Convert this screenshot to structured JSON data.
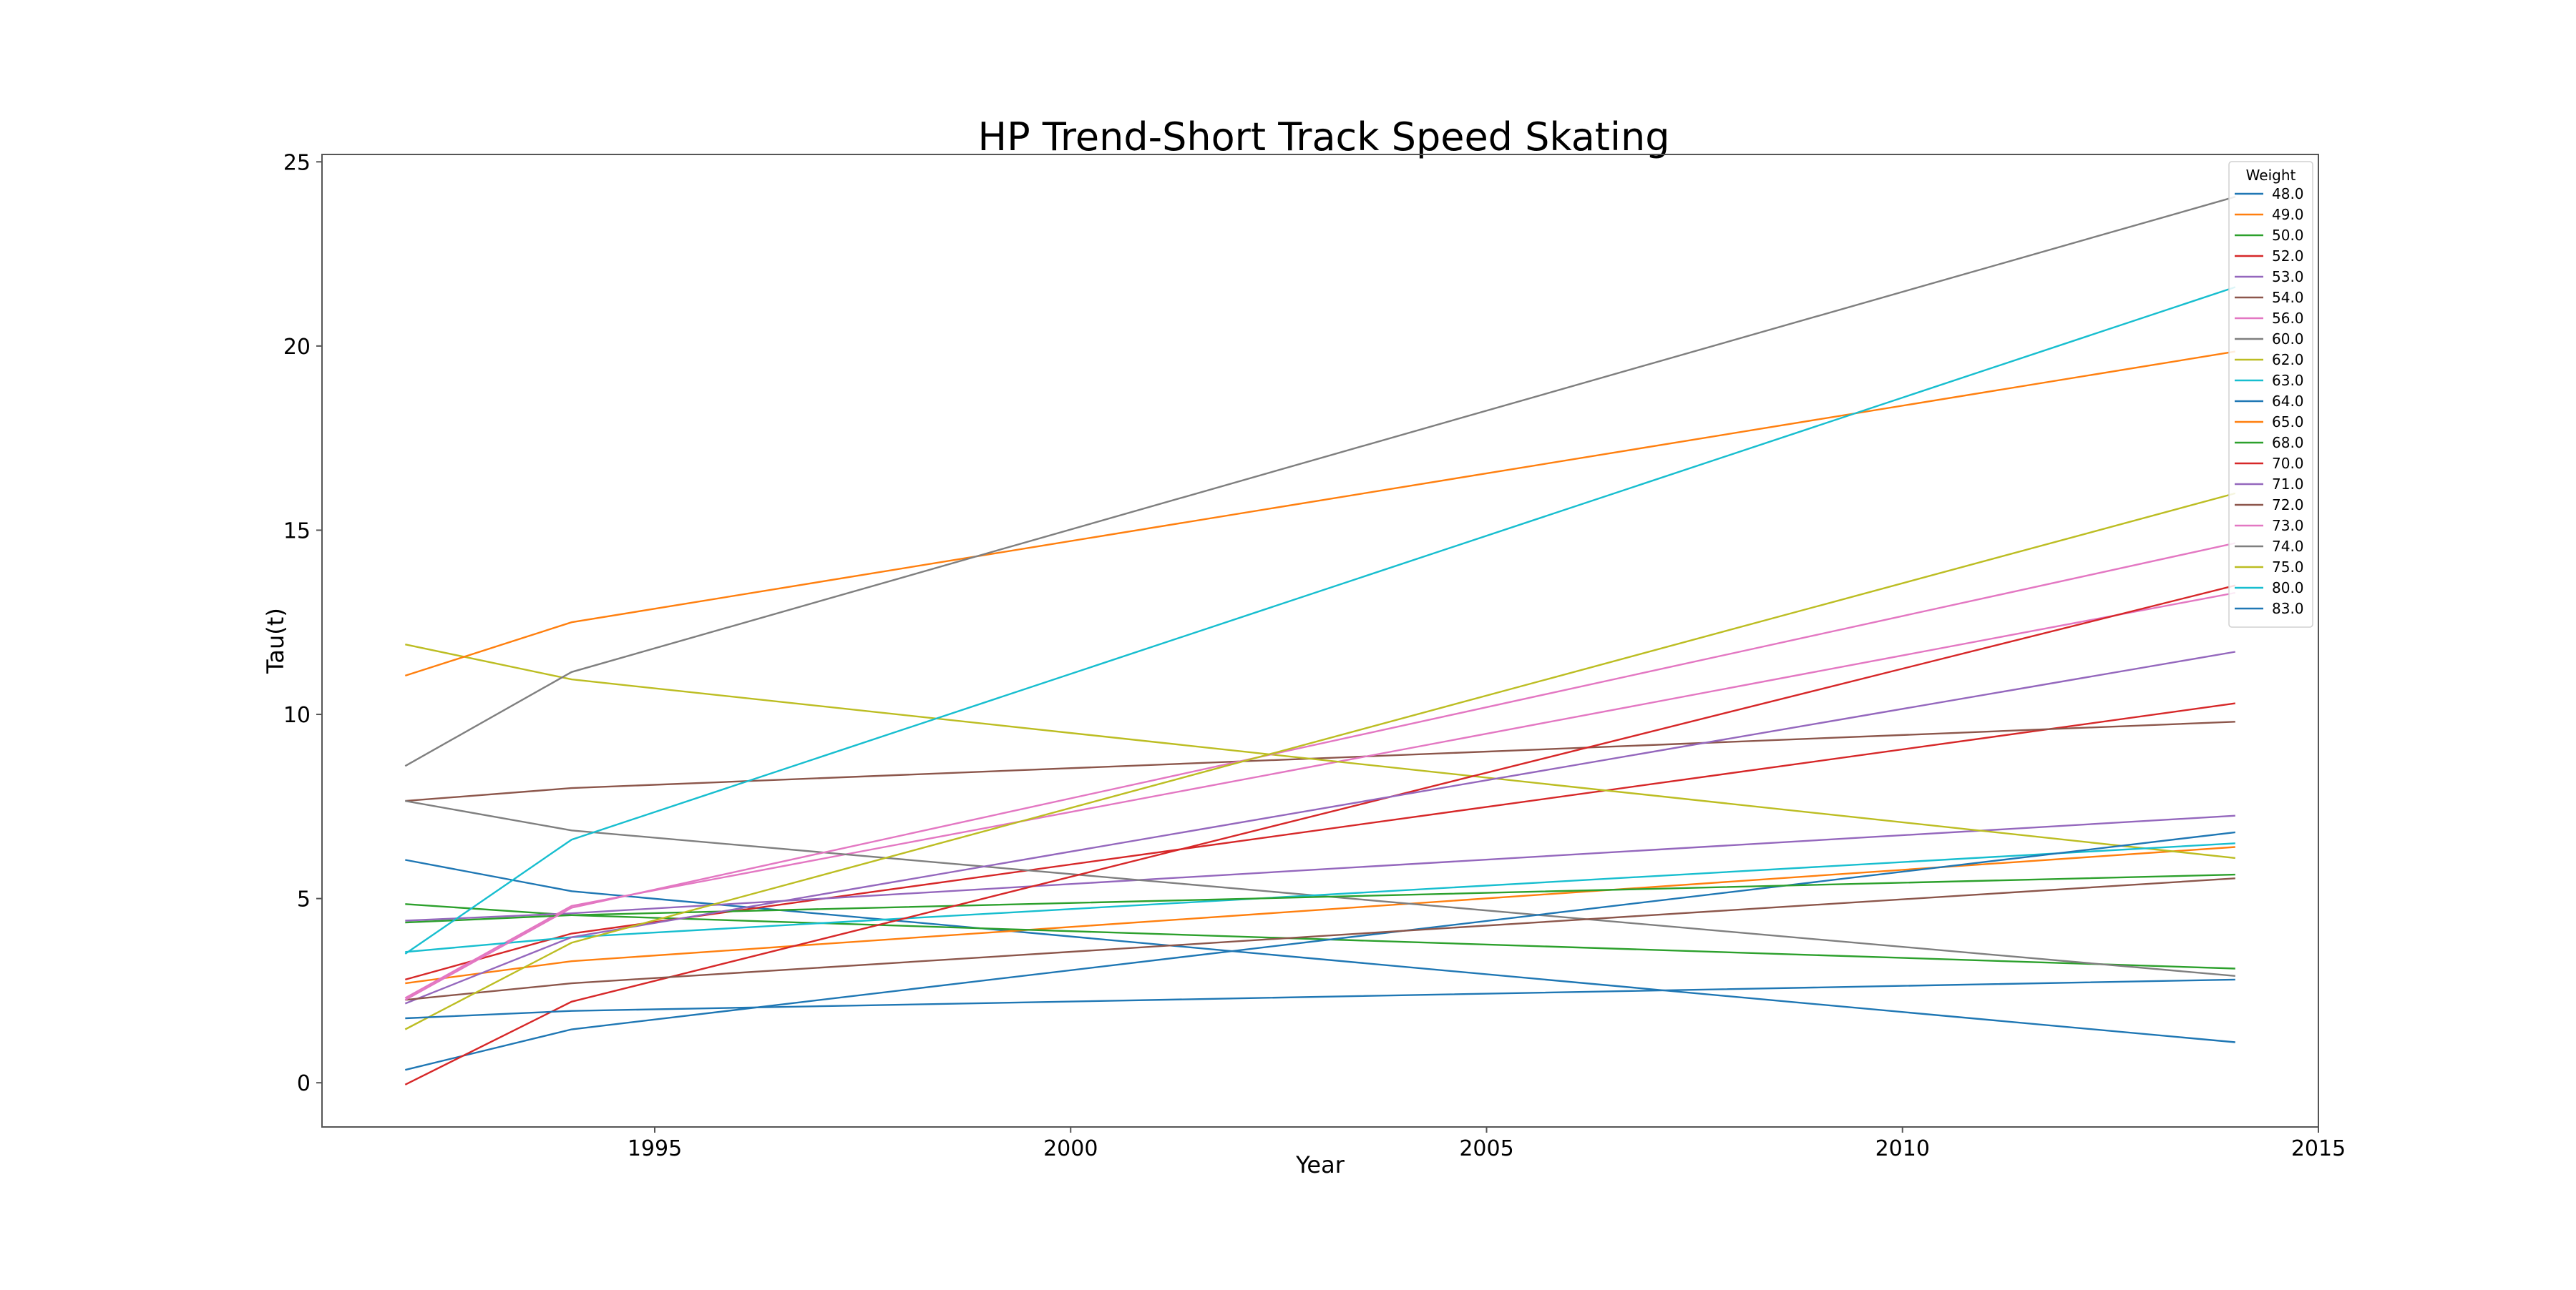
{
  "chart_data": {
    "type": "line",
    "title": "HP Trend-Short Track Speed Skating",
    "xlabel": "Year",
    "ylabel": "Tau(t)",
    "xlim": [
      1991,
      2015
    ],
    "ylim": [
      -1.2,
      25.2
    ],
    "xticks": [
      1995,
      2000,
      2005,
      2010,
      2015
    ],
    "yticks": [
      0,
      5,
      10,
      15,
      20,
      25
    ],
    "grid": false,
    "legend": {
      "title": "Weight",
      "placement": "top-right"
    },
    "x": [
      1992,
      1994,
      2014
    ],
    "series": [
      {
        "name": "48.0",
        "color": "#1f77b4",
        "values": [
          6.05,
          5.2,
          1.1
        ]
      },
      {
        "name": "49.0",
        "color": "#ff7f0e",
        "values": [
          2.7,
          3.3,
          6.4
        ]
      },
      {
        "name": "50.0",
        "color": "#2ca02c",
        "values": [
          4.85,
          4.55,
          3.1
        ]
      },
      {
        "name": "52.0",
        "color": "#d62728",
        "values": [
          2.8,
          4.05,
          10.3
        ]
      },
      {
        "name": "53.0",
        "color": "#9467bd",
        "values": [
          4.4,
          4.6,
          7.25
        ]
      },
      {
        "name": "54.0",
        "color": "#8c564b",
        "values": [
          7.65,
          8.0,
          9.8
        ]
      },
      {
        "name": "56.0",
        "color": "#e377c2",
        "values": [
          2.3,
          4.8,
          13.3
        ]
      },
      {
        "name": "60.0",
        "color": "#7f7f7f",
        "values": [
          7.65,
          6.85,
          2.9
        ]
      },
      {
        "name": "62.0",
        "color": "#bcbd22",
        "values": [
          11.9,
          10.95,
          6.1
        ]
      },
      {
        "name": "63.0",
        "color": "#17becf",
        "values": [
          3.55,
          3.95,
          6.5
        ]
      },
      {
        "name": "64.0",
        "color": "#1f77b4",
        "values": [
          0.35,
          1.45,
          6.8
        ]
      },
      {
        "name": "65.0",
        "color": "#ff7f0e",
        "values": [
          11.05,
          12.5,
          19.85
        ]
      },
      {
        "name": "68.0",
        "color": "#2ca02c",
        "values": [
          4.35,
          4.55,
          5.65
        ]
      },
      {
        "name": "70.0",
        "color": "#d62728",
        "values": [
          -0.05,
          2.2,
          13.5
        ]
      },
      {
        "name": "71.0",
        "color": "#9467bd",
        "values": [
          2.15,
          3.95,
          11.7
        ]
      },
      {
        "name": "72.0",
        "color": "#8c564b",
        "values": [
          2.25,
          2.7,
          5.55
        ]
      },
      {
        "name": "73.0",
        "color": "#e377c2",
        "values": [
          2.25,
          4.75,
          14.65
        ]
      },
      {
        "name": "74.0",
        "color": "#7f7f7f",
        "values": [
          8.6,
          11.15,
          24.05
        ]
      },
      {
        "name": "75.0",
        "color": "#bcbd22",
        "values": [
          1.45,
          3.8,
          16.0
        ]
      },
      {
        "name": "80.0",
        "color": "#17becf",
        "values": [
          3.5,
          6.6,
          21.6
        ]
      },
      {
        "name": "83.0",
        "color": "#1f77b4",
        "values": [
          1.75,
          1.95,
          2.8
        ]
      }
    ]
  }
}
